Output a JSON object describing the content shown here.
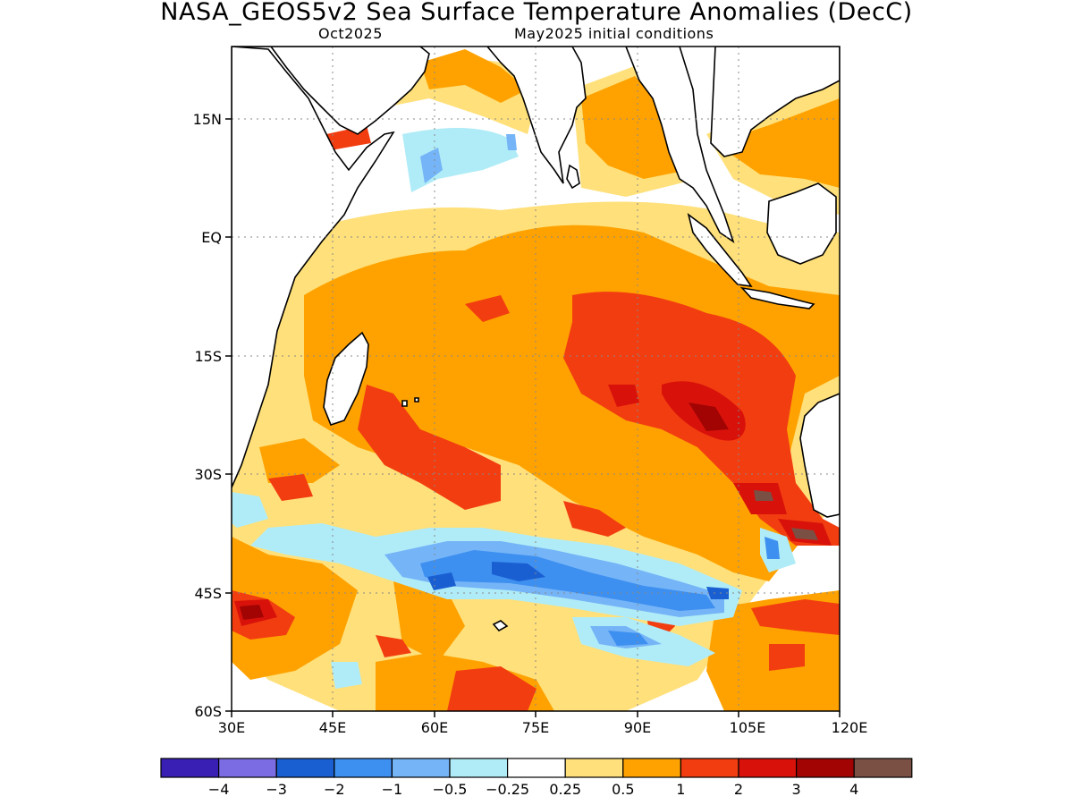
{
  "title": "NASA_GEOS5v2 Sea Surface Temperature Anomalies (DecC)",
  "subtitle_left": "Oct2025",
  "subtitle_right": "May2025 initial conditions",
  "map": {
    "region": "Indian Ocean",
    "lon_range": [
      30,
      120
    ],
    "lat_range": [
      -60,
      21
    ],
    "lat_ticks": [
      "15N",
      "EQ",
      "15S",
      "30S",
      "45S",
      "60S"
    ],
    "lon_ticks": [
      "30E",
      "45E",
      "60E",
      "75E",
      "90E",
      "105E",
      "120E"
    ],
    "gridlines": "dotted"
  },
  "colorbar": {
    "colors": [
      "#3a1fb4",
      "#7b6ce4",
      "#1a5fd1",
      "#3d8ff0",
      "#75b4f7",
      "#b0ecf7",
      "#ffffff",
      "#ffe07a",
      "#ffa200",
      "#f23d10",
      "#d8120a",
      "#a20404",
      "#7a5045"
    ],
    "labels": [
      "−4",
      "−3",
      "−2",
      "−1",
      "−0.5",
      "−0.25",
      "0.25",
      "0.5",
      "1",
      "2",
      "3",
      "4"
    ]
  }
}
